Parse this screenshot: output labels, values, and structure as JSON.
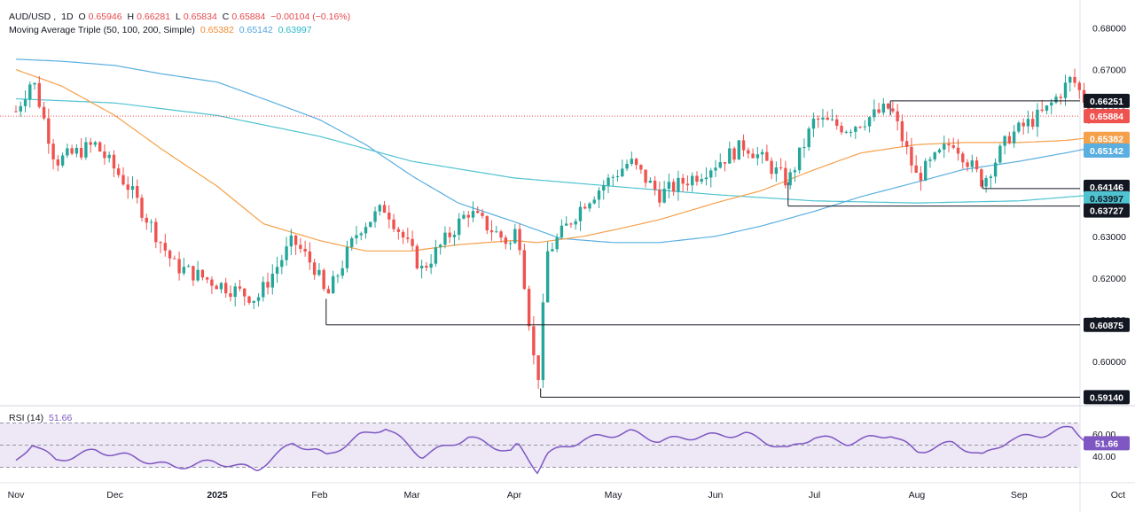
{
  "header": {
    "symbol": "AUD/USD",
    "interval": "1D",
    "o_label": "O",
    "o_val": "0.65946",
    "h_label": "H",
    "h_val": "0.66281",
    "l_label": "L",
    "l_val": "0.65834",
    "c_label": "C",
    "c_val": "0.65884",
    "change": "−0.00104 (−0.16%)",
    "ma_title": "Moving Average Triple (50, 100, 200, Simple)",
    "ma50": "0.65382",
    "ma100": "0.65142",
    "ma200": "0.63997"
  },
  "rsi_header": {
    "title": "RSI (14)",
    "value": "51.66"
  },
  "colors": {
    "up": "#26a69a",
    "down": "#ef5350",
    "ma50": "#f5a04a",
    "ma100": "#5aafe0",
    "ma200": "#4fc3d0",
    "rsi": "#7e57c2",
    "rsi_band": "#ede7f6",
    "level": "#131722"
  },
  "chart_data": {
    "type": "candlestick",
    "price_axis": {
      "min": 0.59,
      "max": 0.685,
      "ticks": [
        "0.68000",
        "0.67000",
        "0.66000",
        "0.65000",
        "0.64000",
        "0.63000",
        "0.62000",
        "0.61000",
        "0.60000"
      ]
    },
    "time_axis": [
      "Nov",
      "Dec",
      "2025",
      "Feb",
      "Mar",
      "Apr",
      "May",
      "Jun",
      "Jul",
      "Aug",
      "Sep",
      "Oct"
    ],
    "price_labels": [
      {
        "text": "0.66251",
        "bg": "#131722",
        "fg": "#ffffff"
      },
      {
        "text": "0.65884",
        "bg": "#ef5350",
        "fg": "#ffffff"
      },
      {
        "text": "0.65382",
        "bg": "#f5a04a",
        "fg": "#ffffff"
      },
      {
        "text": "0.65142",
        "bg": "#5aafe0",
        "fg": "#ffffff"
      },
      {
        "text": "0.64146",
        "bg": "#131722",
        "fg": "#ffffff"
      },
      {
        "text": "0.63997",
        "bg": "#4fc3d0",
        "fg": "#131722"
      },
      {
        "text": "0.63727",
        "bg": "#131722",
        "fg": "#ffffff"
      },
      {
        "text": "0.60875",
        "bg": "#131722",
        "fg": "#ffffff"
      },
      {
        "text": "0.59140",
        "bg": "#131722",
        "fg": "#ffffff"
      }
    ],
    "levels": [
      {
        "price": 0.66251,
        "from": "Jul 24"
      },
      {
        "price": 0.64146,
        "from": "Aug 21"
      },
      {
        "price": 0.63727,
        "from": "Jun 23"
      },
      {
        "price": 0.60875,
        "from": "Feb 3"
      },
      {
        "price": 0.5914,
        "from": "Apr 9"
      }
    ],
    "last_close": 0.65884,
    "close_path": [
      [
        "Nov 1",
        0.66
      ],
      [
        "Nov 6",
        0.668
      ],
      [
        "Nov 13",
        0.648
      ],
      [
        "Nov 25",
        0.652
      ],
      [
        "Dec 5",
        0.642
      ],
      [
        "Dec 19",
        0.623
      ],
      [
        "Dec 31",
        0.619
      ],
      [
        "Jan 13",
        0.615
      ],
      [
        "Jan 24",
        0.629
      ],
      [
        "Jan 31",
        0.622
      ],
      [
        "Feb 3",
        0.615
      ],
      [
        "Feb 13",
        0.632
      ],
      [
        "Feb 21",
        0.637
      ],
      [
        "Mar 4",
        0.622
      ],
      [
        "Mar 18",
        0.636
      ],
      [
        "Mar 31",
        0.628
      ],
      [
        "Apr 2",
        0.633
      ],
      [
        "Apr 8",
        0.5935
      ],
      [
        "Apr 11",
        0.626
      ],
      [
        "Apr 22",
        0.638
      ],
      [
        "May 6",
        0.648
      ],
      [
        "May 15",
        0.64
      ],
      [
        "May 27",
        0.645
      ],
      [
        "Jun 10",
        0.652
      ],
      [
        "Jun 23",
        0.643
      ],
      [
        "Jul 1",
        0.658
      ],
      [
        "Jul 11",
        0.656
      ],
      [
        "Jul 24",
        0.661
      ],
      [
        "Aug 1",
        0.644
      ],
      [
        "Aug 12",
        0.653
      ],
      [
        "Aug 21",
        0.643
      ],
      [
        "Aug 29",
        0.654
      ],
      [
        "Sep 9",
        0.66
      ],
      [
        "Sep 17",
        0.668
      ],
      [
        "Sep 22",
        0.661
      ],
      [
        "Sep 24",
        0.65884
      ]
    ],
    "ma50_path": [
      [
        "Nov 1",
        0.67
      ],
      [
        "Nov 15",
        0.666
      ],
      [
        "Dec 1",
        0.659
      ],
      [
        "Dec 15",
        0.651
      ],
      [
        "Jan 1",
        0.642
      ],
      [
        "Jan 15",
        0.633
      ],
      [
        "Feb 1",
        0.629
      ],
      [
        "Feb 15",
        0.6265
      ],
      [
        "Mar 1",
        0.6265
      ],
      [
        "Mar 15",
        0.628
      ],
      [
        "Apr 1",
        0.629
      ],
      [
        "Apr 8",
        0.6285
      ],
      [
        "Apr 22",
        0.63
      ],
      [
        "May 1",
        0.6315
      ],
      [
        "May 15",
        0.634
      ],
      [
        "Jun 1",
        0.638
      ],
      [
        "Jun 15",
        0.641
      ],
      [
        "Jul 1",
        0.646
      ],
      [
        "Jul 15",
        0.65
      ],
      [
        "Aug 1",
        0.652
      ],
      [
        "Aug 15",
        0.6525
      ],
      [
        "Sep 1",
        0.6525
      ],
      [
        "Sep 15",
        0.653
      ],
      [
        "Sep 24",
        0.65382
      ]
    ],
    "ma100_path": [
      [
        "Nov 1",
        0.6725
      ],
      [
        "Nov 15",
        0.672
      ],
      [
        "Dec 1",
        0.671
      ],
      [
        "Dec 15",
        0.669
      ],
      [
        "Jan 1",
        0.667
      ],
      [
        "Jan 15",
        0.663
      ],
      [
        "Feb 1",
        0.658
      ],
      [
        "Feb 15",
        0.652
      ],
      [
        "Mar 1",
        0.6445
      ],
      [
        "Mar 15",
        0.638
      ],
      [
        "Apr 1",
        0.6335
      ],
      [
        "Apr 15",
        0.6295
      ],
      [
        "May 1",
        0.6285
      ],
      [
        "May 15",
        0.6285
      ],
      [
        "Jun 1",
        0.63
      ],
      [
        "Jun 15",
        0.6325
      ],
      [
        "Jul 1",
        0.636
      ],
      [
        "Jul 15",
        0.6395
      ],
      [
        "Aug 1",
        0.643
      ],
      [
        "Aug 15",
        0.646
      ],
      [
        "Sep 1",
        0.648
      ],
      [
        "Sep 15",
        0.65
      ],
      [
        "Sep 24",
        0.65142
      ]
    ],
    "ma200_path": [
      [
        "Nov 1",
        0.663
      ],
      [
        "Dec 1",
        0.662
      ],
      [
        "Jan 1",
        0.659
      ],
      [
        "Feb 1",
        0.654
      ],
      [
        "Mar 1",
        0.648
      ],
      [
        "Apr 1",
        0.644
      ],
      [
        "May 1",
        0.642
      ],
      [
        "Jun 1",
        0.64
      ],
      [
        "Jul 1",
        0.6385
      ],
      [
        "Aug 1",
        0.638
      ],
      [
        "Sep 1",
        0.6385
      ],
      [
        "Sep 24",
        0.63997
      ]
    ],
    "rsi": {
      "min": 20,
      "max": 80,
      "upper_band": 70,
      "lower_band": 30,
      "mid": 50,
      "ticks": [
        "60.00",
        "40.00"
      ],
      "last": 51.66,
      "path": [
        [
          "Nov 1",
          35
        ],
        [
          "Nov 6",
          52
        ],
        [
          "Nov 13",
          36
        ],
        [
          "Nov 25",
          45
        ],
        [
          "Dec 5",
          40
        ],
        [
          "Dec 19",
          30
        ],
        [
          "Dec 31",
          35
        ],
        [
          "Jan 13",
          28
        ],
        [
          "Jan 24",
          52
        ],
        [
          "Jan 31",
          45
        ],
        [
          "Feb 3",
          40
        ],
        [
          "Feb 13",
          58
        ],
        [
          "Feb 21",
          66
        ],
        [
          "Mar 4",
          40
        ],
        [
          "Mar 18",
          57
        ],
        [
          "Mar 31",
          44
        ],
        [
          "Apr 2",
          50
        ],
        [
          "Apr 8",
          27
        ],
        [
          "Apr 11",
          42
        ],
        [
          "Apr 22",
          55
        ],
        [
          "May 6",
          62
        ],
        [
          "May 15",
          54
        ],
        [
          "May 27",
          58
        ],
        [
          "Jun 10",
          60
        ],
        [
          "Jun 23",
          46
        ],
        [
          "Jul 1",
          58
        ],
        [
          "Jul 11",
          52
        ],
        [
          "Jul 24",
          60
        ],
        [
          "Aug 1",
          44
        ],
        [
          "Aug 12",
          52
        ],
        [
          "Aug 21",
          40
        ],
        [
          "Aug 29",
          55
        ],
        [
          "Sep 9",
          60
        ],
        [
          "Sep 17",
          66
        ],
        [
          "Sep 22",
          53
        ],
        [
          "Sep 24",
          51.66
        ]
      ]
    }
  }
}
